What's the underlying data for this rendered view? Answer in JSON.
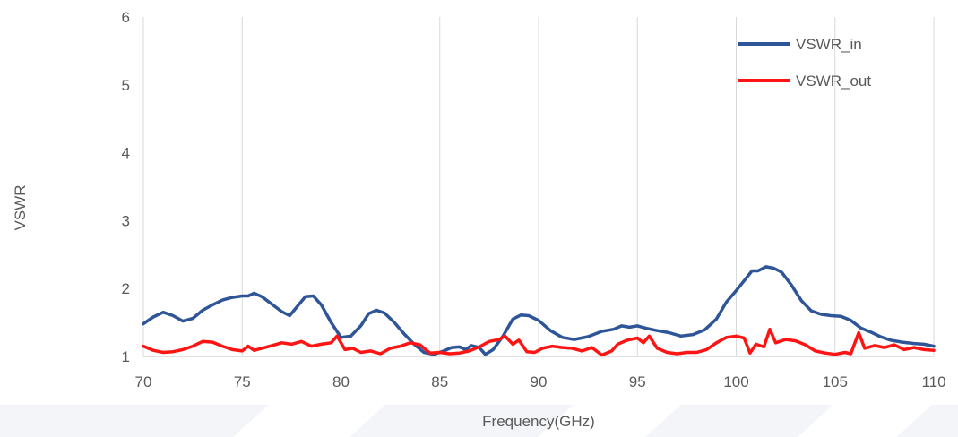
{
  "chart_data": {
    "type": "line",
    "title": "",
    "xlabel": "Frequency(GHz)",
    "ylabel": "VSWR",
    "xlim": [
      70,
      110
    ],
    "ylim": [
      1,
      6
    ],
    "x_ticks": [
      "70",
      "75",
      "80",
      "85",
      "90",
      "95",
      "100",
      "105",
      "110"
    ],
    "y_ticks": [
      "1",
      "2",
      "3",
      "4",
      "5",
      "6"
    ],
    "grid": "vertical",
    "legend_position": "top-right",
    "colors": {
      "grid": "#d9d9d9",
      "tick_text": "#595959",
      "watermark": "#f2f3f7"
    },
    "series": [
      {
        "name": "VSWR_in",
        "color": "#2e5597",
        "points": [
          [
            70,
            1.48
          ],
          [
            70.5,
            1.58
          ],
          [
            71,
            1.65
          ],
          [
            71.5,
            1.6
          ],
          [
            72,
            1.52
          ],
          [
            72.5,
            1.56
          ],
          [
            73,
            1.68
          ],
          [
            73.5,
            1.76
          ],
          [
            74,
            1.83
          ],
          [
            74.5,
            1.87
          ],
          [
            75,
            1.89
          ],
          [
            75.3,
            1.89
          ],
          [
            75.6,
            1.93
          ],
          [
            76,
            1.88
          ],
          [
            76.5,
            1.77
          ],
          [
            77,
            1.66
          ],
          [
            77.4,
            1.6
          ],
          [
            77.8,
            1.74
          ],
          [
            78.2,
            1.88
          ],
          [
            78.6,
            1.89
          ],
          [
            79,
            1.76
          ],
          [
            79.5,
            1.5
          ],
          [
            80,
            1.28
          ],
          [
            80.5,
            1.3
          ],
          [
            81,
            1.45
          ],
          [
            81.4,
            1.63
          ],
          [
            81.8,
            1.68
          ],
          [
            82.2,
            1.64
          ],
          [
            82.7,
            1.5
          ],
          [
            83.2,
            1.33
          ],
          [
            83.7,
            1.18
          ],
          [
            84.2,
            1.06
          ],
          [
            84.7,
            1.03
          ],
          [
            85.2,
            1.08
          ],
          [
            85.6,
            1.13
          ],
          [
            86,
            1.14
          ],
          [
            86.3,
            1.1
          ],
          [
            86.6,
            1.16
          ],
          [
            87,
            1.13
          ],
          [
            87.3,
            1.03
          ],
          [
            87.7,
            1.1
          ],
          [
            88.2,
            1.3
          ],
          [
            88.7,
            1.55
          ],
          [
            89.1,
            1.61
          ],
          [
            89.5,
            1.6
          ],
          [
            90,
            1.53
          ],
          [
            90.6,
            1.38
          ],
          [
            91.2,
            1.28
          ],
          [
            91.8,
            1.25
          ],
          [
            92.5,
            1.29
          ],
          [
            93.2,
            1.37
          ],
          [
            93.8,
            1.4
          ],
          [
            94.2,
            1.45
          ],
          [
            94.6,
            1.43
          ],
          [
            95,
            1.45
          ],
          [
            95.5,
            1.41
          ],
          [
            96,
            1.38
          ],
          [
            96.6,
            1.35
          ],
          [
            97.2,
            1.3
          ],
          [
            97.8,
            1.32
          ],
          [
            98.4,
            1.39
          ],
          [
            99,
            1.55
          ],
          [
            99.5,
            1.8
          ],
          [
            100,
            1.97
          ],
          [
            100.5,
            2.15
          ],
          [
            100.8,
            2.26
          ],
          [
            101.1,
            2.26
          ],
          [
            101.5,
            2.32
          ],
          [
            101.9,
            2.3
          ],
          [
            102.3,
            2.24
          ],
          [
            102.8,
            2.05
          ],
          [
            103.3,
            1.82
          ],
          [
            103.8,
            1.67
          ],
          [
            104.3,
            1.62
          ],
          [
            104.8,
            1.6
          ],
          [
            105.3,
            1.59
          ],
          [
            105.8,
            1.53
          ],
          [
            106.3,
            1.42
          ],
          [
            106.8,
            1.36
          ],
          [
            107.3,
            1.29
          ],
          [
            107.8,
            1.24
          ],
          [
            108.4,
            1.21
          ],
          [
            109,
            1.19
          ],
          [
            109.5,
            1.18
          ],
          [
            110,
            1.15
          ]
        ]
      },
      {
        "name": "VSWR_out",
        "color": "#ff1414",
        "points": [
          [
            70,
            1.15
          ],
          [
            70.5,
            1.09
          ],
          [
            71,
            1.06
          ],
          [
            71.5,
            1.07
          ],
          [
            72,
            1.1
          ],
          [
            72.5,
            1.15
          ],
          [
            73,
            1.22
          ],
          [
            73.5,
            1.21
          ],
          [
            74,
            1.15
          ],
          [
            74.5,
            1.1
          ],
          [
            75,
            1.08
          ],
          [
            75.3,
            1.15
          ],
          [
            75.6,
            1.09
          ],
          [
            76,
            1.12
          ],
          [
            76.5,
            1.16
          ],
          [
            77,
            1.2
          ],
          [
            77.5,
            1.18
          ],
          [
            78,
            1.22
          ],
          [
            78.5,
            1.15
          ],
          [
            79,
            1.18
          ],
          [
            79.5,
            1.2
          ],
          [
            79.8,
            1.3
          ],
          [
            80.2,
            1.1
          ],
          [
            80.6,
            1.12
          ],
          [
            81,
            1.06
          ],
          [
            81.5,
            1.08
          ],
          [
            82,
            1.04
          ],
          [
            82.5,
            1.12
          ],
          [
            83,
            1.15
          ],
          [
            83.5,
            1.2
          ],
          [
            84,
            1.17
          ],
          [
            84.5,
            1.05
          ],
          [
            85,
            1.06
          ],
          [
            85.5,
            1.04
          ],
          [
            86,
            1.05
          ],
          [
            86.5,
            1.08
          ],
          [
            87,
            1.14
          ],
          [
            87.5,
            1.22
          ],
          [
            88,
            1.25
          ],
          [
            88.3,
            1.3
          ],
          [
            88.7,
            1.18
          ],
          [
            89,
            1.24
          ],
          [
            89.4,
            1.07
          ],
          [
            89.8,
            1.06
          ],
          [
            90.2,
            1.12
          ],
          [
            90.7,
            1.15
          ],
          [
            91.2,
            1.13
          ],
          [
            91.7,
            1.12
          ],
          [
            92.2,
            1.08
          ],
          [
            92.7,
            1.13
          ],
          [
            93.2,
            1.02
          ],
          [
            93.7,
            1.08
          ],
          [
            94,
            1.18
          ],
          [
            94.5,
            1.24
          ],
          [
            95,
            1.27
          ],
          [
            95.3,
            1.2
          ],
          [
            95.6,
            1.3
          ],
          [
            96,
            1.12
          ],
          [
            96.5,
            1.06
          ],
          [
            97,
            1.04
          ],
          [
            97.5,
            1.06
          ],
          [
            98,
            1.06
          ],
          [
            98.5,
            1.1
          ],
          [
            99,
            1.2
          ],
          [
            99.5,
            1.28
          ],
          [
            100,
            1.3
          ],
          [
            100.4,
            1.27
          ],
          [
            100.7,
            1.05
          ],
          [
            101,
            1.18
          ],
          [
            101.4,
            1.14
          ],
          [
            101.7,
            1.4
          ],
          [
            102,
            1.2
          ],
          [
            102.5,
            1.25
          ],
          [
            103,
            1.23
          ],
          [
            103.5,
            1.17
          ],
          [
            104,
            1.08
          ],
          [
            104.5,
            1.05
          ],
          [
            105,
            1.03
          ],
          [
            105.5,
            1.06
          ],
          [
            105.8,
            1.04
          ],
          [
            106.2,
            1.35
          ],
          [
            106.5,
            1.12
          ],
          [
            107,
            1.16
          ],
          [
            107.5,
            1.13
          ],
          [
            108,
            1.17
          ],
          [
            108.5,
            1.1
          ],
          [
            109,
            1.13
          ],
          [
            109.5,
            1.1
          ],
          [
            110,
            1.09
          ]
        ]
      }
    ]
  }
}
